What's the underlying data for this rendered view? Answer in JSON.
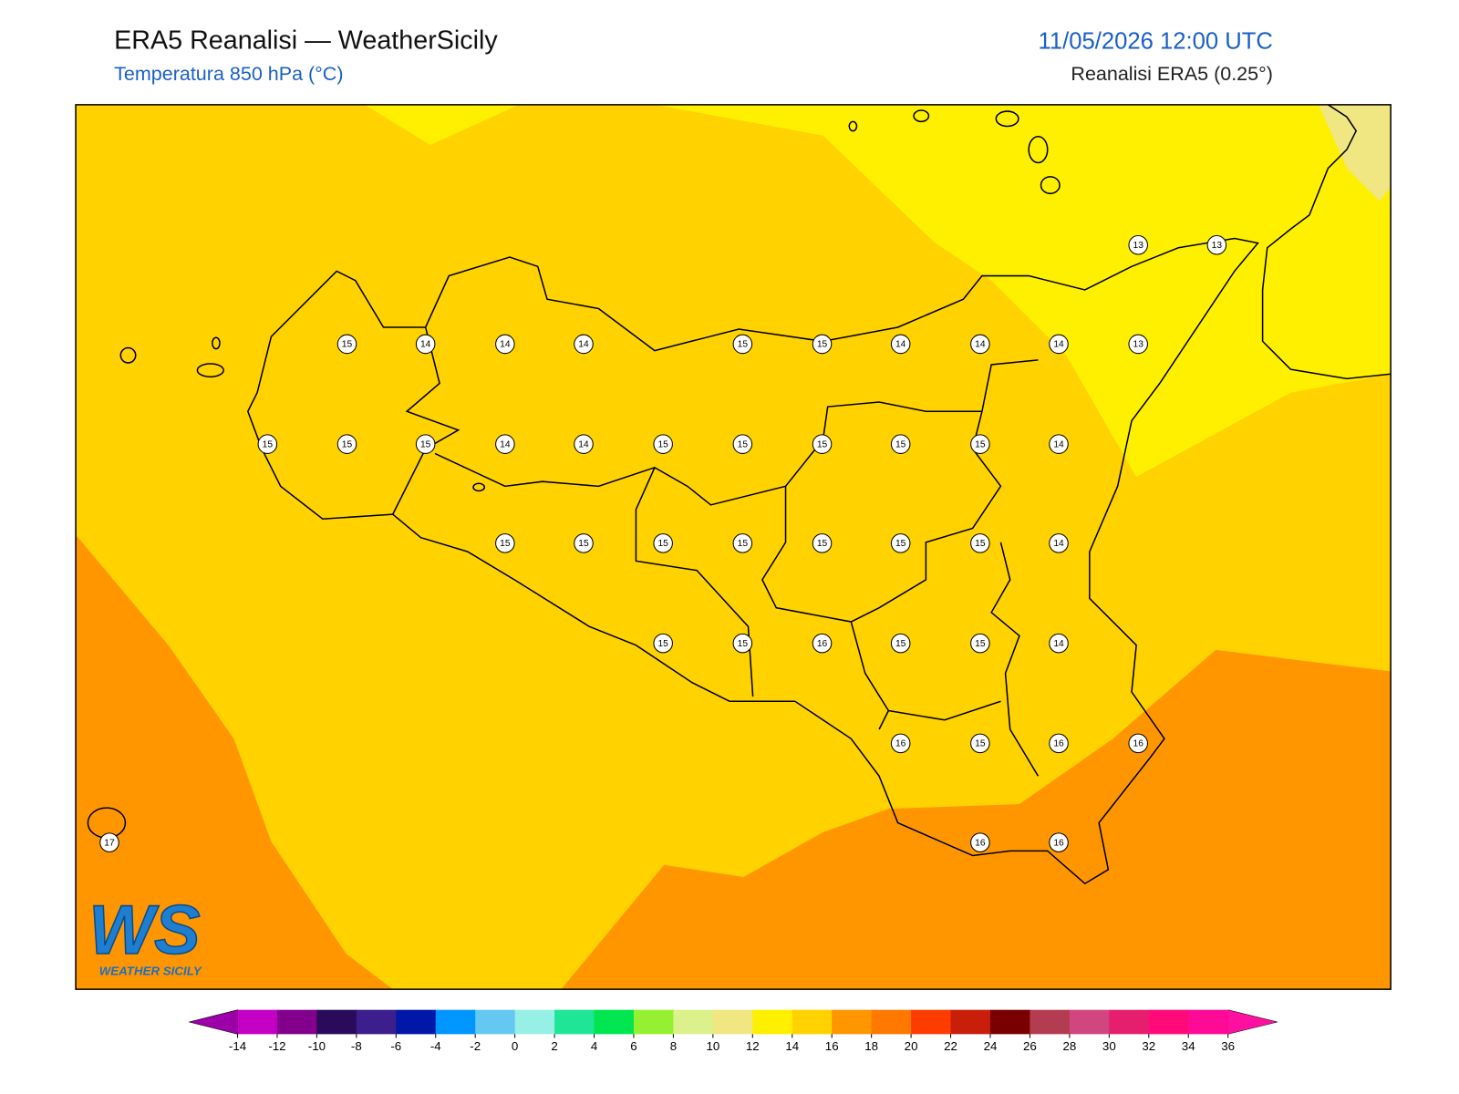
{
  "header": {
    "title": "ERA5 Reanalisi — WeatherSicily",
    "subtitle": "Temperatura 850 hPa (°C)",
    "datetime": "11/05/2026 12:00 UTC",
    "source": "Reanalisi ERA5 (0.25°)"
  },
  "points": [
    13,
    13,
    15,
    14,
    14,
    14,
    15,
    15,
    14,
    14,
    14,
    13,
    15,
    15,
    15,
    14,
    14,
    15,
    15,
    15,
    15,
    15,
    14,
    15,
    15,
    15,
    15,
    15,
    15,
    15,
    14,
    15,
    15,
    16,
    15,
    15,
    14,
    16,
    15,
    16,
    16,
    17,
    16,
    16
  ],
  "colorbar": {
    "ticks": [
      -14,
      -12,
      -10,
      -8,
      -6,
      -4,
      -2,
      0,
      2,
      4,
      6,
      8,
      10,
      12,
      14,
      16,
      18,
      20,
      22,
      24,
      26,
      28,
      30,
      32,
      34,
      36
    ],
    "colors": [
      "#c400c4",
      "#82008c",
      "#2a0a5a",
      "#3c1e8c",
      "#0018a8",
      "#0096ff",
      "#64c8f0",
      "#96f0e6",
      "#1ee696",
      "#00e650",
      "#96f032",
      "#dcf08c",
      "#f0e682",
      "#fff000",
      "#ffd200",
      "#ff9600",
      "#ff7800",
      "#ff3c00",
      "#c81e0a",
      "#7a0000",
      "#b43c50",
      "#d24680",
      "#e61e6e",
      "#ff0a78",
      "#ff0a96"
    ],
    "under_color": "#9c00a8",
    "over_color": "#ff10a0"
  },
  "logo": {
    "mark": "WS",
    "name": "WEATHER SICILY"
  }
}
